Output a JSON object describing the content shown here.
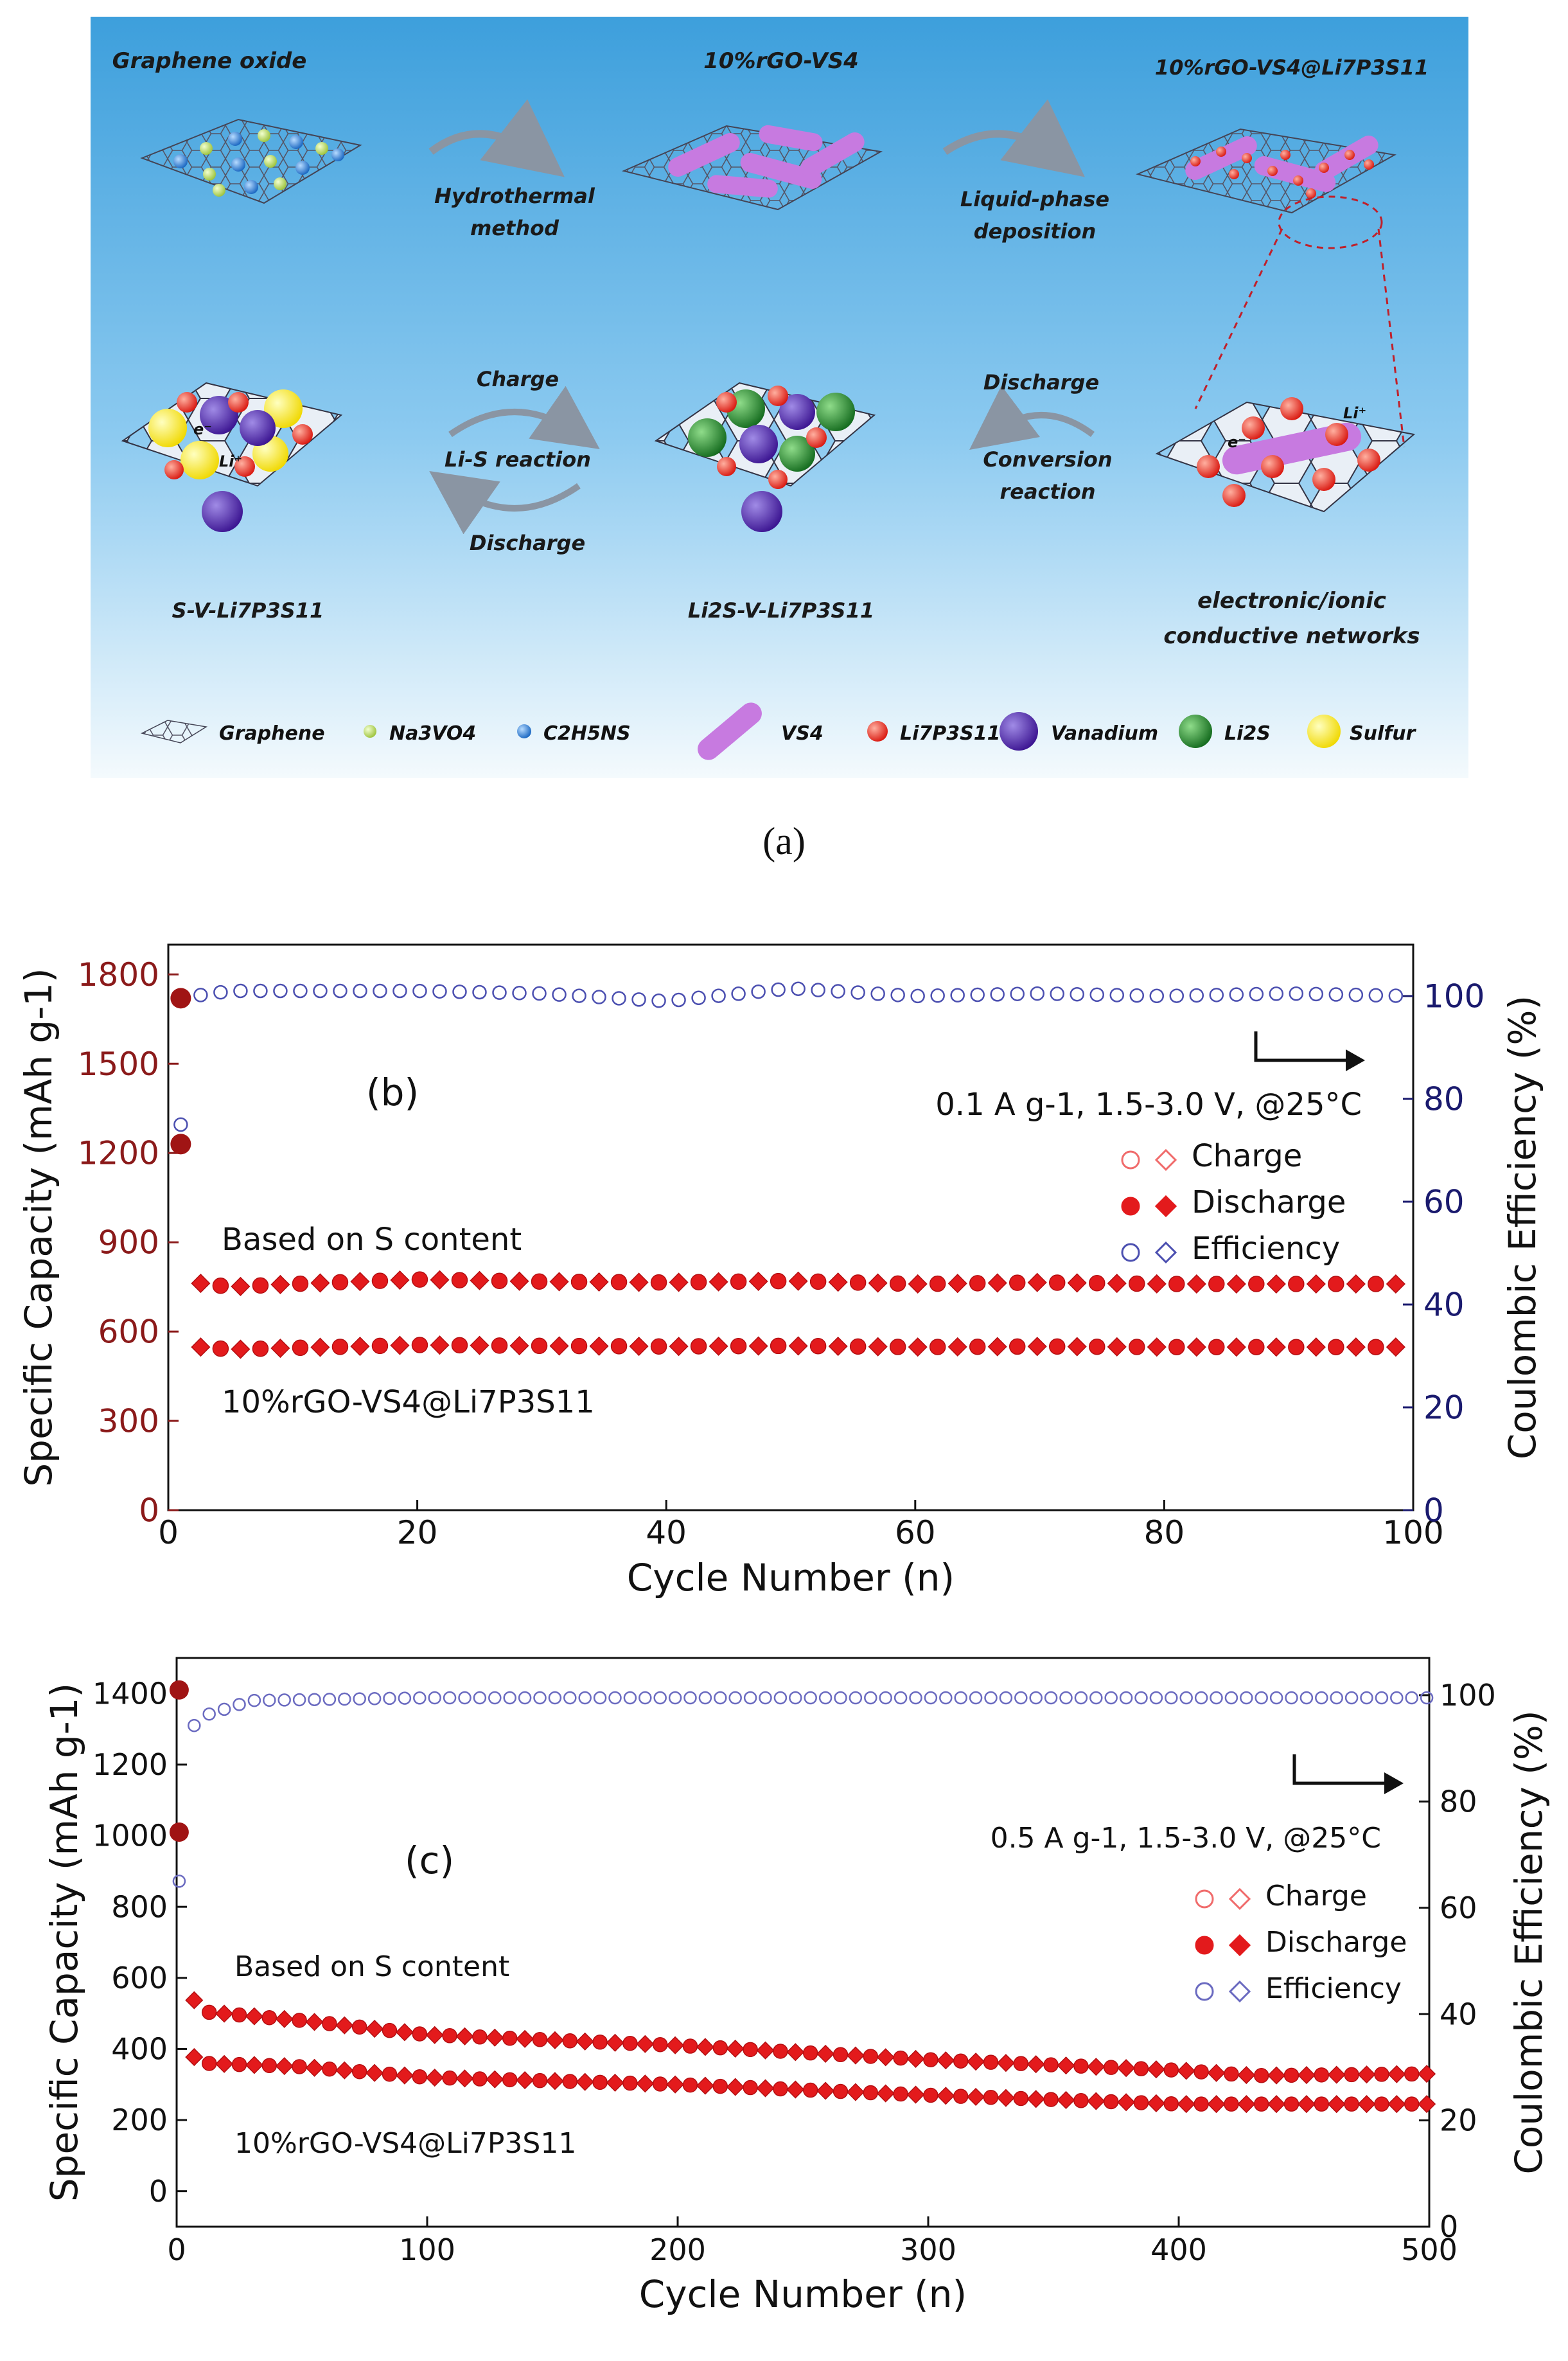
{
  "panel_a": {
    "top_labels": [
      "Graphene oxide",
      "10%rGO-VS4",
      "10%rGO-VS4@Li7P3S11"
    ],
    "arrow_labels_top": [
      [
        "Hydrothermal",
        "method"
      ],
      [
        "Liquid-phase",
        "deposition"
      ]
    ],
    "bottom_labels": [
      "S-V-Li7P3S11",
      "Li2S-V-Li7P3S11",
      "electronic/ionic conductive networks"
    ],
    "network_lines": [
      "electronic/ionic",
      "conductive networks"
    ],
    "cycle_labels": {
      "charge": "Charge",
      "li_s": "Li-S reaction",
      "discharge": "Discharge"
    },
    "right_labels": {
      "discharge": "Discharge",
      "conversion": [
        "Conversion",
        "reaction"
      ]
    },
    "legend": [
      "Graphene",
      "Na3VO4",
      "C2H5NS",
      "VS4",
      "Li7P3S11",
      "Vanadium",
      "Li2S",
      "Sulfur"
    ],
    "colors": {
      "bg_top": "#3d9fdc",
      "bg_bottom": "#eef7fc",
      "vs4": "#c77ae0",
      "li7p3s11": "#e8281e",
      "vanadium": "#4a1f9e",
      "li2s": "#1f8a2a",
      "sulfur": "#f5e51a",
      "na3vo4": "#b8d84a",
      "c2h5ns": "#2a7fd4"
    }
  },
  "caption_a": "(a)",
  "chart_data": [
    {
      "type": "scatter",
      "panel_label": "(b)",
      "xlabel": "Cycle Number (n)",
      "ylabel": "Specific Capacity (mAh g-1)",
      "y2label": "Coulombic Efficiency (%)",
      "xlim": [
        0,
        100
      ],
      "ylim": [
        0,
        1900
      ],
      "y2lim": [
        0,
        110
      ],
      "xticks": [
        0,
        20,
        40,
        60,
        80,
        100
      ],
      "yticks": [
        0,
        300,
        600,
        900,
        1200,
        1500,
        1800
      ],
      "y2ticks": [
        0,
        20,
        40,
        60,
        80,
        100
      ],
      "condition": "0.1 A g-1, 1.5-3.0 V, @25°C",
      "legend": [
        "Charge",
        "Discharge",
        "Efficiency"
      ],
      "annotation_s": "Based on S content",
      "annotation_comp": "10%rGO-VS4@Li7P3S11",
      "series": [
        {
          "name": "Based on S content",
          "points": [
            [
              1,
              1720
            ],
            [
              2,
              765
            ],
            [
              5,
              750
            ],
            [
              10,
              760
            ],
            [
              20,
              775
            ],
            [
              30,
              768
            ],
            [
              40,
              765
            ],
            [
              50,
              770
            ],
            [
              60,
              760
            ],
            [
              70,
              765
            ],
            [
              80,
              760
            ],
            [
              90,
              760
            ],
            [
              100,
              760
            ]
          ]
        },
        {
          "name": "10%rGO-VS4@Li7P3S11",
          "points": [
            [
              1,
              1230
            ],
            [
              2,
              550
            ],
            [
              5,
              540
            ],
            [
              10,
              545
            ],
            [
              20,
              555
            ],
            [
              30,
              552
            ],
            [
              40,
              550
            ],
            [
              50,
              552
            ],
            [
              60,
              548
            ],
            [
              70,
              550
            ],
            [
              80,
              548
            ],
            [
              90,
              548
            ],
            [
              100,
              548
            ]
          ]
        },
        {
          "name": "Efficiency",
          "axis": "y2",
          "points": [
            [
              1,
              75
            ],
            [
              2,
              100
            ],
            [
              5,
              101
            ],
            [
              10,
              101
            ],
            [
              20,
              101
            ],
            [
              30,
              100.5
            ],
            [
              40,
              99
            ],
            [
              50,
              101.5
            ],
            [
              60,
              100
            ],
            [
              70,
              100.5
            ],
            [
              80,
              100
            ],
            [
              90,
              100.5
            ],
            [
              100,
              100
            ]
          ]
        }
      ],
      "colors": {
        "capacity": "#e31a1c",
        "efficiency": "#4b4fb0",
        "axis_left": "#8b1a1a",
        "axis_right": "#1a1a6e"
      }
    },
    {
      "type": "scatter",
      "panel_label": "(c)",
      "xlabel": "Cycle Number (n)",
      "ylabel": "Specific Capacity (mAh g-1)",
      "y2label": "Coulombic Efficiency (%)",
      "xlim": [
        0,
        500
      ],
      "ylim": [
        -100,
        1500
      ],
      "y2lim": [
        0,
        107
      ],
      "xticks": [
        0,
        100,
        200,
        300,
        400,
        500
      ],
      "yticks": [
        0,
        200,
        400,
        600,
        800,
        1000,
        1200,
        1400
      ],
      "y2ticks": [
        0,
        20,
        40,
        60,
        80,
        100
      ],
      "condition": "0.5 A g-1, 1.5-3.0 V, @25°C",
      "legend": [
        "Charge",
        "Discharge",
        "Efficiency"
      ],
      "annotation_s": "Based on S content",
      "annotation_comp": "10%rGO-VS4@Li7P3S11",
      "series": [
        {
          "name": "Based on S content",
          "points": [
            [
              1,
              1410
            ],
            [
              3,
              580
            ],
            [
              10,
              505
            ],
            [
              50,
              480
            ],
            [
              100,
              440
            ],
            [
              200,
              410
            ],
            [
              300,
              370
            ],
            [
              400,
              340
            ],
            [
              430,
              325
            ],
            [
              500,
              330
            ]
          ]
        },
        {
          "name": "10%rGO-VS4@Li7P3S11",
          "points": [
            [
              1,
              1010
            ],
            [
              3,
              400
            ],
            [
              10,
              360
            ],
            [
              50,
              350
            ],
            [
              100,
              320
            ],
            [
              200,
              300
            ],
            [
              300,
              270
            ],
            [
              400,
              245
            ],
            [
              500,
              245
            ]
          ]
        },
        {
          "name": "Efficiency",
          "axis": "y2",
          "points": [
            [
              1,
              65
            ],
            [
              3,
              92
            ],
            [
              10,
              96
            ],
            [
              30,
              99
            ],
            [
              100,
              99.5
            ],
            [
              200,
              99.5
            ],
            [
              300,
              99.5
            ],
            [
              400,
              99.5
            ],
            [
              500,
              99.5
            ]
          ]
        }
      ],
      "colors": {
        "capacity": "#e31a1c",
        "efficiency": "#6a6ac0",
        "axis_left": "#111111",
        "axis_right": "#111111"
      }
    }
  ]
}
